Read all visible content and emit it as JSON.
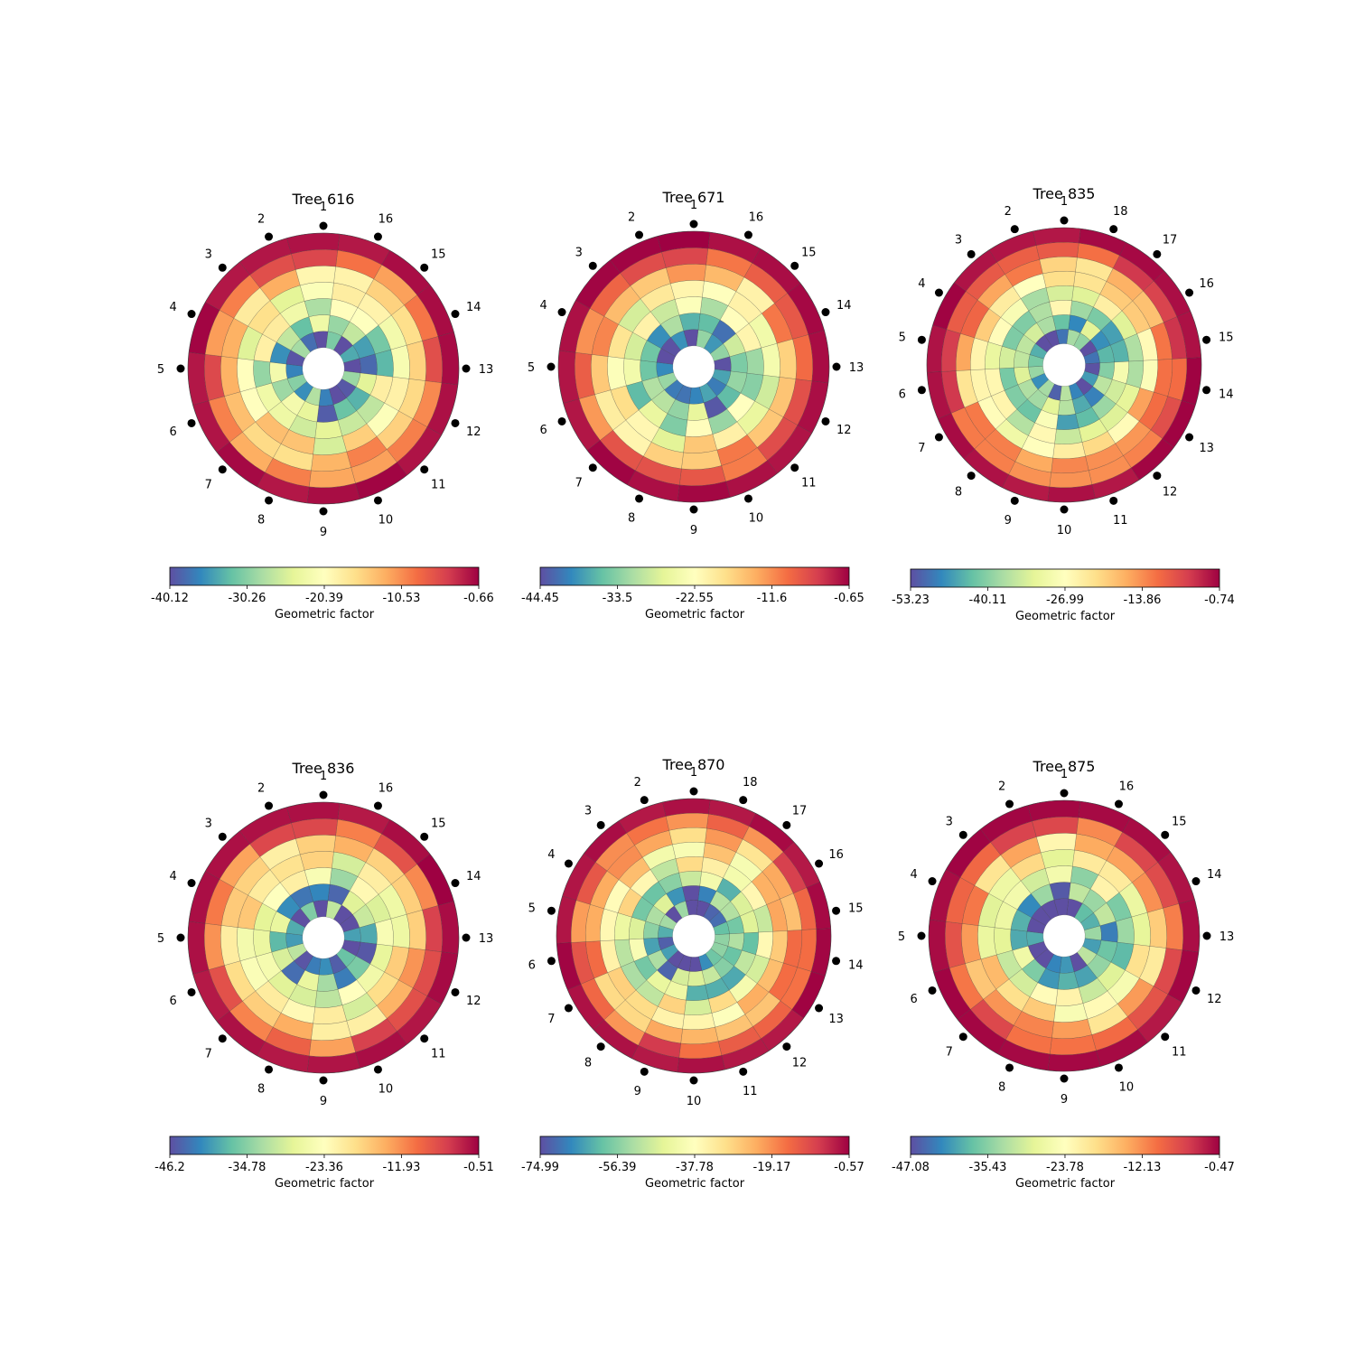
{
  "chart_data": [
    {
      "type": "heatmap",
      "subtype": "polar-tomogram",
      "title": "Tree 616",
      "sensors": [
        "1",
        "2",
        "3",
        "4",
        "5",
        "6",
        "7",
        "8",
        "9",
        "10",
        "11",
        "12",
        "13",
        "14",
        "15",
        "16"
      ],
      "colorbar": {
        "label": "Geometric factor",
        "min": -40.12,
        "max": -0.66,
        "ticks": [
          -40.12,
          -30.26,
          -20.39,
          -10.53,
          -0.66
        ],
        "tick_labels": [
          "-40.12",
          "-30.26",
          "-20.39",
          "-10.53",
          "-0.66"
        ]
      },
      "colormap": "Spectral",
      "rings": 7,
      "sectors": 16
    },
    {
      "type": "heatmap",
      "subtype": "polar-tomogram",
      "title": "Tree 671",
      "sensors": [
        "1",
        "2",
        "3",
        "4",
        "5",
        "6",
        "7",
        "8",
        "9",
        "10",
        "11",
        "12",
        "13",
        "14",
        "15",
        "16"
      ],
      "colorbar": {
        "label": "Geometric factor",
        "min": -44.45,
        "max": -0.65,
        "ticks": [
          -44.45,
          -33.5,
          -22.55,
          -11.6,
          -0.65
        ],
        "tick_labels": [
          "-44.45",
          "-33.5",
          "-22.55",
          "-11.6",
          "-0.65"
        ]
      },
      "colormap": "Spectral",
      "rings": 7,
      "sectors": 16
    },
    {
      "type": "heatmap",
      "subtype": "polar-tomogram",
      "title": "Tree 835",
      "sensors": [
        "1",
        "2",
        "3",
        "4",
        "5",
        "6",
        "7",
        "8",
        "9",
        "10",
        "11",
        "12",
        "13",
        "14",
        "15",
        "16",
        "17",
        "18"
      ],
      "colorbar": {
        "label": "Geometric factor",
        "min": -53.23,
        "max": -0.74,
        "ticks": [
          -53.23,
          -40.11,
          -26.99,
          -13.86,
          -0.74
        ],
        "tick_labels": [
          "-53.23",
          "-40.11",
          "-26.99",
          "-13.86",
          "-0.74"
        ]
      },
      "colormap": "Spectral",
      "rings": 8,
      "sectors": 18
    },
    {
      "type": "heatmap",
      "subtype": "polar-tomogram",
      "title": "Tree 836",
      "sensors": [
        "1",
        "2",
        "3",
        "4",
        "5",
        "6",
        "7",
        "8",
        "9",
        "10",
        "11",
        "12",
        "13",
        "14",
        "15",
        "16"
      ],
      "colorbar": {
        "label": "Geometric factor",
        "min": -46.2,
        "max": -0.51,
        "ticks": [
          -46.2,
          -34.78,
          -23.36,
          -11.93,
          -0.51
        ],
        "tick_labels": [
          "-46.2",
          "-34.78",
          "-23.36",
          "-11.93",
          "-0.51"
        ]
      },
      "colormap": "Spectral",
      "rings": 7,
      "sectors": 16
    },
    {
      "type": "heatmap",
      "subtype": "polar-tomogram",
      "title": "Tree 870",
      "sensors": [
        "1",
        "2",
        "3",
        "4",
        "5",
        "6",
        "7",
        "8",
        "9",
        "10",
        "11",
        "12",
        "13",
        "14",
        "15",
        "16",
        "17",
        "18"
      ],
      "colorbar": {
        "label": "Geometric factor",
        "min": -74.99,
        "max": -0.57,
        "ticks": [
          -74.99,
          -56.39,
          -37.78,
          -19.17,
          -0.57
        ],
        "tick_labels": [
          "-74.99",
          "-56.39",
          "-37.78",
          "-19.17",
          "-0.57"
        ]
      },
      "colormap": "Spectral",
      "rings": 8,
      "sectors": 18
    },
    {
      "type": "heatmap",
      "subtype": "polar-tomogram",
      "title": "Tree 875",
      "sensors": [
        "1",
        "2",
        "3",
        "4",
        "5",
        "6",
        "7",
        "8",
        "9",
        "10",
        "11",
        "12",
        "13",
        "14",
        "15",
        "16"
      ],
      "colorbar": {
        "label": "Geometric factor",
        "min": -47.08,
        "max": -0.47,
        "ticks": [
          -47.08,
          -35.43,
          -23.78,
          -12.13,
          -0.47
        ],
        "tick_labels": [
          "-47.08",
          "-35.43",
          "-23.78",
          "-12.13",
          "-0.47"
        ]
      },
      "colormap": "Spectral",
      "rings": 7,
      "sectors": 16
    }
  ]
}
